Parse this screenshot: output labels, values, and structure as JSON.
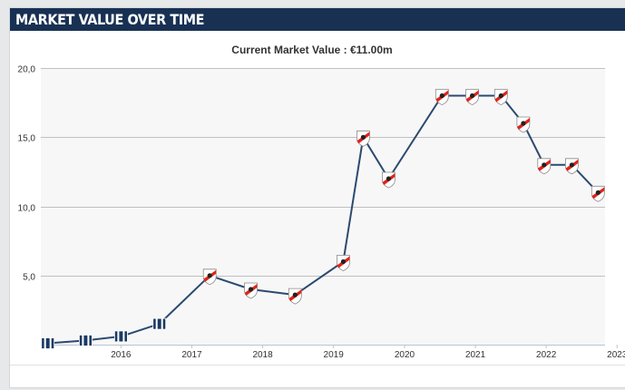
{
  "header": {
    "title": "MARKET VALUE OVER TIME"
  },
  "colors": {
    "header_bg": "#183153",
    "line": "#2b4a6f",
    "plot_bg": "#f7f7f7",
    "grid": "#c0c0c0",
    "club_badge_red": "#e2231a",
    "early_club_badge_navy": "#1b3a63"
  },
  "icons": [
    "river-plate-crest-icon",
    "early-club-crest-icon"
  ],
  "chart_data": {
    "type": "line",
    "title": "Current Market Value : €11.00m",
    "xlabel": "",
    "ylabel": "",
    "ylim": [
      0,
      20
    ],
    "xlim": [
      "2015-05-15",
      "2023-04-30"
    ],
    "yticks": [
      "20,0",
      "15,0",
      "10,0",
      "5,0"
    ],
    "xticks": [
      "2016",
      "2017",
      "2018",
      "2019",
      "2020",
      "2021",
      "2022",
      "2023"
    ],
    "grid": true,
    "legend": "none",
    "series": [
      {
        "points": [
          {
            "x": "2015-06-20",
            "y": 0.1,
            "badge": "early"
          },
          {
            "x": "2016-01-01",
            "y": 0.3,
            "badge": "early"
          },
          {
            "x": "2016-07-01",
            "y": 0.6,
            "badge": "early"
          },
          {
            "x": "2017-01-15",
            "y": 1.5,
            "badge": "early"
          },
          {
            "x": "2017-10-01",
            "y": 5.0,
            "badge": "club"
          },
          {
            "x": "2018-05-01",
            "y": 4.0,
            "badge": "club"
          },
          {
            "x": "2018-12-15",
            "y": 3.6,
            "badge": "club"
          },
          {
            "x": "2019-08-20",
            "y": 6.0,
            "badge": "club"
          },
          {
            "x": "2019-12-01",
            "y": 15.0,
            "badge": "club"
          },
          {
            "x": "2020-04-10",
            "y": 12.0,
            "badge": "club"
          },
          {
            "x": "2021-01-10",
            "y": 18.0,
            "badge": "club"
          },
          {
            "x": "2021-06-15",
            "y": 18.0,
            "badge": "club"
          },
          {
            "x": "2021-11-10",
            "y": 18.0,
            "badge": "club"
          },
          {
            "x": "2022-03-05",
            "y": 16.0,
            "badge": "club"
          },
          {
            "x": "2022-06-20",
            "y": 13.0,
            "badge": "club"
          },
          {
            "x": "2022-11-10",
            "y": 13.0,
            "badge": "club"
          },
          {
            "x": "2023-03-25",
            "y": 11.0,
            "badge": "club"
          }
        ]
      }
    ]
  }
}
